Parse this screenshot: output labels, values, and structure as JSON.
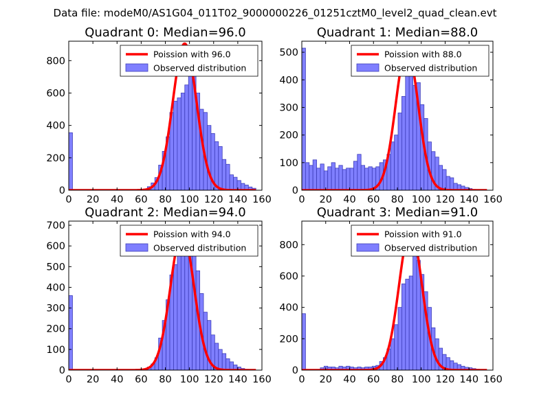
{
  "suptitle": "Data file: modeM0/AS1G04_011T02_9000000226_01251cztM0_level2_quad_clean.evt",
  "colors": {
    "bar_fill": "#7f7fff",
    "bar_stroke": "#3d3db8",
    "fit_line": "#ff0000"
  },
  "chart_data": [
    {
      "type": "bar",
      "title": "Quadrant 0: Median=96.0",
      "median": 96.0,
      "legend": [
        "Poission with 96.0",
        "Observed distribution"
      ],
      "legend_position": "top-right",
      "xlim": [
        0,
        160
      ],
      "ylim": [
        0,
        920
      ],
      "xticks": [
        0,
        20,
        40,
        60,
        80,
        100,
        120,
        140,
        160
      ],
      "yticks": [
        0,
        200,
        400,
        600,
        800
      ],
      "bin_width": 3.1,
      "counts": [
        355,
        0,
        0,
        0,
        0,
        0,
        0,
        0,
        0,
        0,
        0,
        0,
        0,
        0,
        0,
        0,
        0,
        0,
        0,
        0,
        8,
        22,
        45,
        78,
        155,
        240,
        330,
        480,
        550,
        570,
        600,
        650,
        720,
        820,
        600,
        500,
        480,
        400,
        350,
        300,
        270,
        190,
        160,
        95,
        80,
        60,
        42,
        32,
        20,
        12
      ],
      "fit": {
        "lambda": 96.0,
        "peak": 905
      }
    },
    {
      "type": "bar",
      "title": "Quadrant 1: Median=88.0",
      "median": 88.0,
      "legend": [
        "Poission with 88.0",
        "Observed distribution"
      ],
      "legend_position": "top-right",
      "xlim": [
        0,
        160
      ],
      "ylim": [
        0,
        540
      ],
      "xticks": [
        0,
        20,
        40,
        60,
        80,
        100,
        120,
        140,
        160
      ],
      "yticks": [
        0,
        100,
        200,
        300,
        400,
        500
      ],
      "bin_width": 3.1,
      "counts": [
        515,
        100,
        90,
        110,
        80,
        95,
        70,
        85,
        100,
        80,
        90,
        75,
        80,
        80,
        105,
        130,
        90,
        80,
        85,
        80,
        85,
        100,
        110,
        130,
        175,
        200,
        280,
        340,
        500,
        510,
        380,
        390,
        310,
        260,
        175,
        140,
        120,
        90,
        75,
        50,
        45,
        25,
        20,
        15,
        10,
        6,
        3,
        2,
        0,
        0
      ],
      "fit": {
        "lambda": 88.0,
        "peak": 515
      }
    },
    {
      "type": "bar",
      "title": "Quadrant 2: Median=94.0",
      "median": 94.0,
      "legend": [
        "Poission with 94.0",
        "Observed distribution"
      ],
      "legend_position": "top-right",
      "xlim": [
        0,
        160
      ],
      "ylim": [
        0,
        720
      ],
      "xticks": [
        0,
        20,
        40,
        60,
        80,
        100,
        120,
        140,
        160
      ],
      "yticks": [
        0,
        100,
        200,
        300,
        400,
        500,
        600,
        700
      ],
      "bin_width": 3.1,
      "counts": [
        360,
        0,
        0,
        0,
        0,
        0,
        0,
        0,
        0,
        0,
        0,
        0,
        0,
        0,
        0,
        0,
        0,
        0,
        0,
        0,
        5,
        15,
        30,
        60,
        155,
        240,
        340,
        460,
        510,
        590,
        650,
        640,
        600,
        580,
        480,
        370,
        280,
        240,
        170,
        130,
        100,
        80,
        55,
        40,
        25,
        15,
        8,
        4,
        2,
        0
      ],
      "fit": {
        "lambda": 94.0,
        "peak": 670
      }
    },
    {
      "type": "bar",
      "title": "Quadrant 3: Median=91.0",
      "median": 91.0,
      "legend": [
        "Poission with 91.0",
        "Observed distribution"
      ],
      "legend_position": "top-right",
      "xlim": [
        0,
        160
      ],
      "ylim": [
        0,
        950
      ],
      "xticks": [
        0,
        20,
        40,
        60,
        80,
        100,
        120,
        140,
        160
      ],
      "yticks": [
        0,
        200,
        400,
        600,
        800
      ],
      "bin_width": 3.1,
      "counts": [
        360,
        0,
        0,
        0,
        5,
        15,
        25,
        20,
        20,
        15,
        25,
        20,
        25,
        20,
        15,
        20,
        15,
        20,
        20,
        25,
        30,
        55,
        80,
        135,
        200,
        290,
        400,
        550,
        580,
        600,
        880,
        700,
        610,
        500,
        400,
        270,
        200,
        140,
        100,
        80,
        60,
        45,
        35,
        25,
        18,
        15,
        10,
        6,
        3,
        0
      ],
      "fit": {
        "lambda": 91.0,
        "peak": 900
      }
    }
  ]
}
